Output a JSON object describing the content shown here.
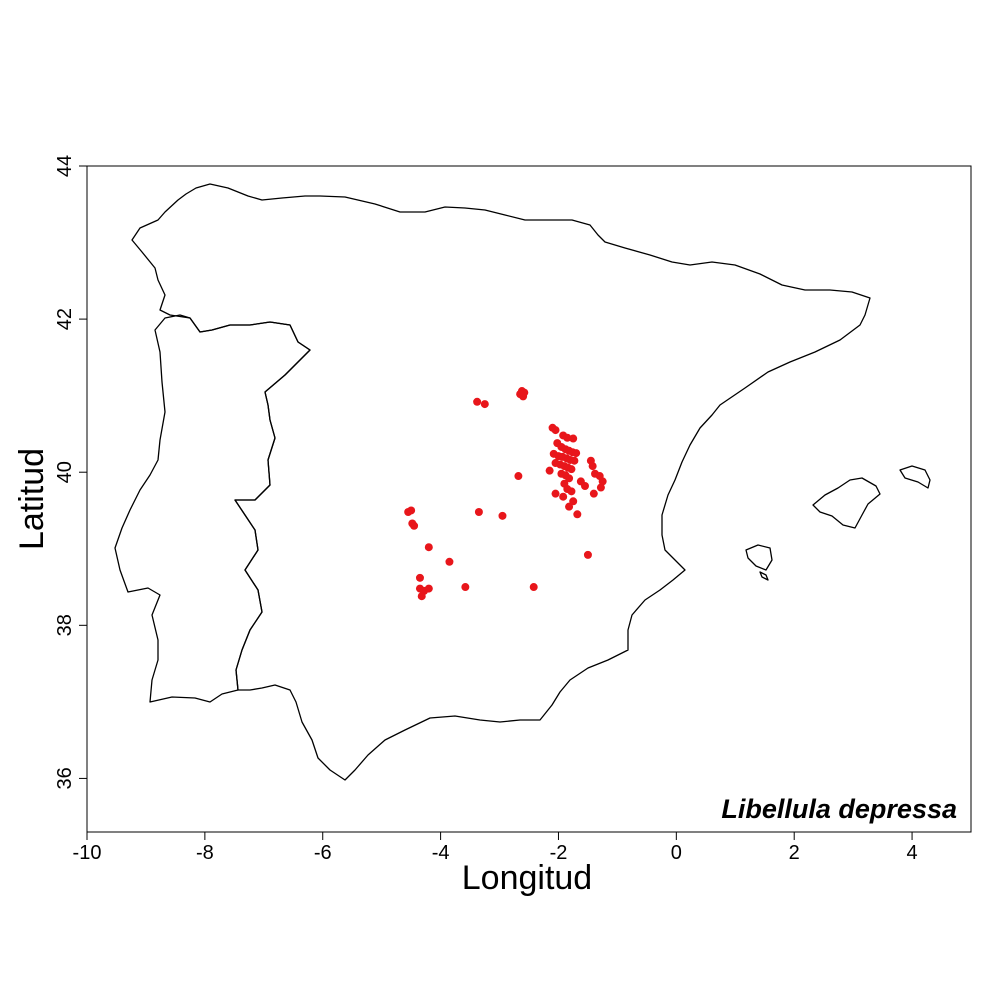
{
  "chart_data": {
    "type": "scatter",
    "xlabel": "Longitud",
    "ylabel": "Latitud",
    "xlim": [
      -10,
      5
    ],
    "ylim": [
      35.3,
      44
    ],
    "xticks": [
      -10,
      -8,
      -6,
      -4,
      -2,
      0,
      2,
      4
    ],
    "yticks": [
      36,
      38,
      40,
      42,
      44
    ],
    "annotation": "Libellula depressa",
    "point_color": "#e8161b",
    "outline_color": "#000000",
    "points": [
      {
        "x": -2.62,
        "y": 41.06
      },
      {
        "x": -2.65,
        "y": 41.02
      },
      {
        "x": -2.6,
        "y": 40.99
      },
      {
        "x": -2.58,
        "y": 41.04
      },
      {
        "x": -3.38,
        "y": 40.92
      },
      {
        "x": -3.25,
        "y": 40.89
      },
      {
        "x": -2.1,
        "y": 40.58
      },
      {
        "x": -2.05,
        "y": 40.55
      },
      {
        "x": -1.92,
        "y": 40.48
      },
      {
        "x": -1.85,
        "y": 40.45
      },
      {
        "x": -1.75,
        "y": 40.44
      },
      {
        "x": -2.02,
        "y": 40.38
      },
      {
        "x": -1.95,
        "y": 40.33
      },
      {
        "x": -1.88,
        "y": 40.3
      },
      {
        "x": -1.82,
        "y": 40.28
      },
      {
        "x": -1.76,
        "y": 40.26
      },
      {
        "x": -1.7,
        "y": 40.25
      },
      {
        "x": -2.08,
        "y": 40.24
      },
      {
        "x": -2.0,
        "y": 40.21
      },
      {
        "x": -1.93,
        "y": 40.2
      },
      {
        "x": -1.86,
        "y": 40.18
      },
      {
        "x": -1.8,
        "y": 40.16
      },
      {
        "x": -1.73,
        "y": 40.15
      },
      {
        "x": -2.05,
        "y": 40.12
      },
      {
        "x": -1.97,
        "y": 40.1
      },
      {
        "x": -1.9,
        "y": 40.08
      },
      {
        "x": -1.84,
        "y": 40.06
      },
      {
        "x": -1.78,
        "y": 40.04
      },
      {
        "x": -2.15,
        "y": 40.02
      },
      {
        "x": -1.95,
        "y": 39.98
      },
      {
        "x": -1.88,
        "y": 39.96
      },
      {
        "x": -1.82,
        "y": 39.92
      },
      {
        "x": -1.9,
        "y": 39.85
      },
      {
        "x": -1.85,
        "y": 39.78
      },
      {
        "x": -1.78,
        "y": 39.75
      },
      {
        "x": -2.05,
        "y": 39.72
      },
      {
        "x": -1.92,
        "y": 39.68
      },
      {
        "x": -1.75,
        "y": 39.62
      },
      {
        "x": -1.82,
        "y": 39.55
      },
      {
        "x": -1.68,
        "y": 39.45
      },
      {
        "x": -1.62,
        "y": 39.88
      },
      {
        "x": -1.55,
        "y": 39.82
      },
      {
        "x": -1.45,
        "y": 40.15
      },
      {
        "x": -1.42,
        "y": 40.08
      },
      {
        "x": -1.38,
        "y": 39.98
      },
      {
        "x": -1.3,
        "y": 39.95
      },
      {
        "x": -1.25,
        "y": 39.88
      },
      {
        "x": -1.28,
        "y": 39.8
      },
      {
        "x": -1.4,
        "y": 39.72
      },
      {
        "x": -1.5,
        "y": 38.92
      },
      {
        "x": -2.68,
        "y": 39.95
      },
      {
        "x": -4.55,
        "y": 39.48
      },
      {
        "x": -4.5,
        "y": 39.5
      },
      {
        "x": -4.48,
        "y": 39.33
      },
      {
        "x": -4.45,
        "y": 39.3
      },
      {
        "x": -3.35,
        "y": 39.48
      },
      {
        "x": -2.95,
        "y": 39.43
      },
      {
        "x": -4.2,
        "y": 39.02
      },
      {
        "x": -3.85,
        "y": 38.83
      },
      {
        "x": -4.35,
        "y": 38.62
      },
      {
        "x": -4.35,
        "y": 38.48
      },
      {
        "x": -4.28,
        "y": 38.45
      },
      {
        "x": -4.2,
        "y": 38.48
      },
      {
        "x": -4.32,
        "y": 38.38
      },
      {
        "x": -3.58,
        "y": 38.5
      },
      {
        "x": -2.42,
        "y": 38.5
      }
    ]
  }
}
